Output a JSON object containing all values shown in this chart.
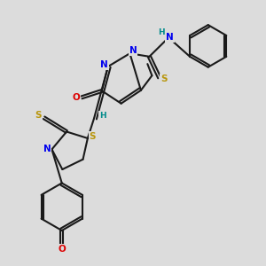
{
  "bg_color": "#dcdcdc",
  "bond_color": "#1a1a1a",
  "atom_colors": {
    "N": "#0000ee",
    "O": "#dd0000",
    "S": "#b8960c",
    "H": "#008b8b",
    "C": "#1a1a1a"
  },
  "lw": 1.5,
  "fs": 7.5,
  "fsh": 6.5,
  "xlim": [
    0,
    10
  ],
  "ylim": [
    0,
    10
  ]
}
